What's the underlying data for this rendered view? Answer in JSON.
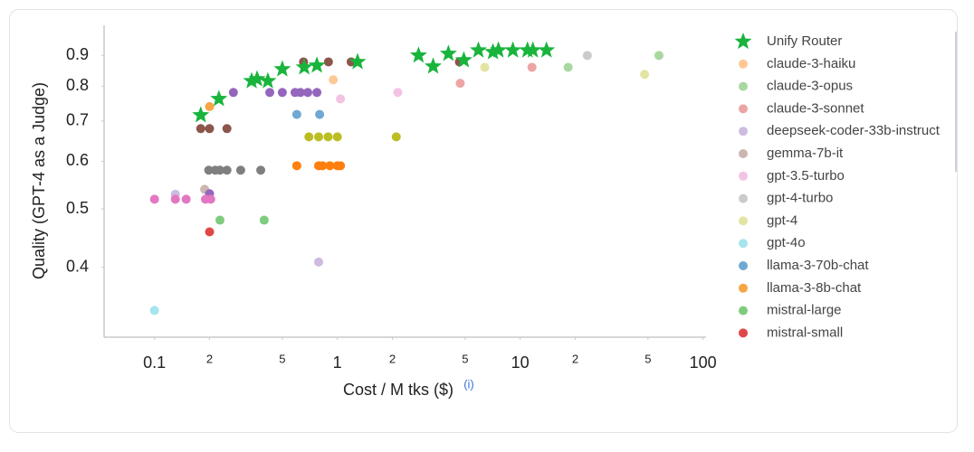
{
  "chart_data": {
    "type": "scatter",
    "y_label": "Quality (GPT-4 as a Judge)",
    "x_label": "Cost / M tks ($)",
    "x_label_info": "(i)",
    "log_x": true,
    "log_y": true,
    "xlim": [
      0.053,
      110
    ],
    "ylim": [
      0.306,
      1.01
    ],
    "xticks": [
      0.1,
      {
        "value": 0.2,
        "label": "2"
      },
      {
        "value": 0.5,
        "label": "5"
      },
      1,
      {
        "value": 2,
        "label": "2"
      },
      {
        "value": 5,
        "label": "5"
      },
      10,
      {
        "value": 20,
        "label": "2"
      },
      {
        "value": 50,
        "label": "5"
      },
      100
    ],
    "yticks": [
      0.4,
      0.5,
      0.6,
      0.7,
      0.8,
      0.9
    ],
    "legend": "right",
    "series": [
      {
        "name": "Unify Router",
        "color": "#19b43c",
        "marker": "star",
        "x": [
          0.179,
          0.225,
          0.34,
          0.364,
          0.417,
          0.5,
          0.659,
          0.773,
          1.29,
          2.78,
          3.34,
          4.05,
          4.92,
          5.91,
          7.1,
          7.6,
          9.12,
          10.96,
          11.73,
          13.93
        ],
        "values": [
          0.716,
          0.762,
          0.816,
          0.822,
          0.816,
          0.854,
          0.86,
          0.866,
          0.878,
          0.9,
          0.863,
          0.906,
          0.884,
          0.918,
          0.912,
          0.918,
          0.918,
          0.918,
          0.918,
          0.918
        ]
      },
      {
        "name": "claude-3-haiku",
        "color": "#ffc894",
        "x": [
          0.95
        ],
        "values": [
          0.82
        ]
      },
      {
        "name": "claude-3-opus",
        "color": "#a8d8a0",
        "x": [
          18.3,
          57.4
        ],
        "values": [
          0.86,
          0.9
        ]
      },
      {
        "name": "claude-3-sonnet",
        "color": "#eca4a4",
        "x": [
          4.7,
          11.6
        ],
        "values": [
          0.809,
          0.86
        ]
      },
      {
        "name": "deepseek-coder-33b-instruct",
        "color": "#cdbbe0",
        "x": [
          0.79,
          0.13
        ],
        "values": [
          0.408,
          0.529
        ]
      },
      {
        "name": "gemma-7b-it",
        "color": "#cdb5b0",
        "x": [
          0.188
        ],
        "values": [
          0.539
        ]
      },
      {
        "name": "gpt-3.5-turbo",
        "color": "#f3c3e3",
        "x": [
          2.14,
          1.04
        ],
        "values": [
          0.781,
          0.762
        ]
      },
      {
        "name": "gpt-4-turbo",
        "color": "#cbcbcb",
        "x": [
          23.3
        ],
        "values": [
          0.9
        ]
      },
      {
        "name": "gpt-4",
        "color": "#e3e3a4",
        "x": [
          6.4,
          47.9
        ],
        "values": [
          0.86,
          0.837
        ]
      },
      {
        "name": "gpt-4o",
        "color": "#a6e4ee",
        "x": [
          0.1
        ],
        "values": [
          0.339
        ]
      },
      {
        "name": "llama-3-70b-chat",
        "color": "#6ea8d3",
        "x": [
          0.6,
          0.8
        ],
        "values": [
          0.718,
          0.718
        ]
      },
      {
        "name": "llama-3-8b-chat",
        "color": "#f7a544",
        "x": [
          0.2
        ],
        "values": [
          0.74
        ]
      },
      {
        "name": "mistral-large",
        "color": "#7fcc7f",
        "x": [
          0.228,
          0.398
        ],
        "values": [
          0.479,
          0.479
        ]
      },
      {
        "name": "mistral-small",
        "color": "#e04848",
        "x": [
          0.2
        ],
        "values": [
          0.458
        ]
      },
      {
        "color": "#9467bd",
        "x": [
          0.27,
          0.427,
          0.5,
          0.587,
          0.628,
          0.689,
          0.773,
          0.2
        ],
        "values": [
          0.781,
          0.781,
          0.781,
          0.781,
          0.781,
          0.781,
          0.781,
          0.53
        ]
      },
      {
        "color": "#8c564b",
        "x": [
          0.179,
          0.2,
          0.249,
          0.653,
          0.894,
          1.19,
          4.65
        ],
        "values": [
          0.68,
          0.68,
          0.68,
          0.878,
          0.878,
          0.878,
          0.878
        ]
      },
      {
        "color": "#7f7f7f",
        "x": [
          0.198,
          0.215,
          0.228,
          0.249,
          0.296,
          0.381
        ],
        "values": [
          0.58,
          0.58,
          0.58,
          0.58,
          0.58,
          0.58
        ]
      },
      {
        "color": "#bcbd22",
        "x": [
          0.699,
          0.79,
          0.89,
          1.0,
          2.1
        ],
        "values": [
          0.659,
          0.659,
          0.659,
          0.659,
          0.659
        ]
      },
      {
        "color": "#ff7f0e",
        "x": [
          0.6,
          0.79,
          0.83,
          0.91,
          1.0,
          1.04
        ],
        "values": [
          0.59,
          0.59,
          0.59,
          0.59,
          0.59,
          0.59
        ]
      },
      {
        "color": "#e377c2",
        "x": [
          0.1,
          0.13,
          0.149,
          0.19,
          0.203
        ],
        "values": [
          0.519,
          0.519,
          0.519,
          0.519,
          0.519
        ]
      }
    ]
  }
}
